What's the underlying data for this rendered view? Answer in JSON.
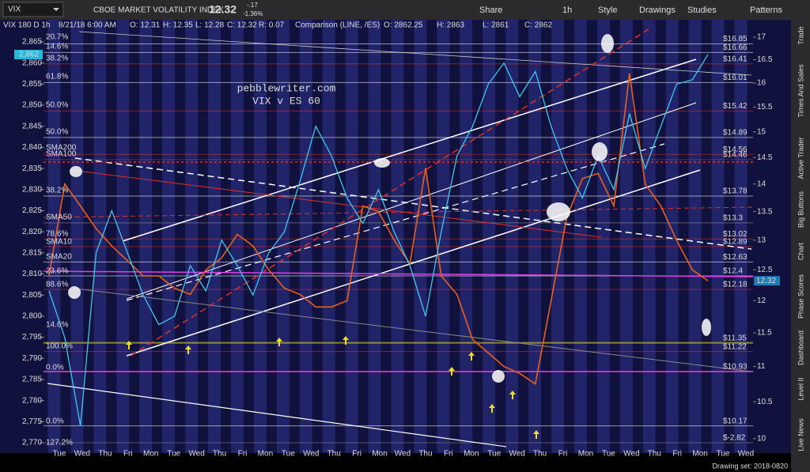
{
  "toolbar": {
    "symbol": "VIX",
    "name": "CBOE MARKET VOLATILITY INDEX",
    "price": "12.32",
    "change": "-.17",
    "change_pct": "-1.36%",
    "buttons": [
      "Share",
      "1h",
      "Style",
      "Drawings",
      "Studies",
      "Patterns"
    ]
  },
  "header": {
    "study": "VIX 180 D 1h",
    "datetime": "8/21/18 6:00 AM",
    "ohlc": [
      "O: 12.31",
      "H: 12.35",
      "L: 12.28",
      "C: 12.32",
      "R: 0.07"
    ],
    "comparison": "Comparison (LINE, /ES)",
    "comparison_ohlc": [
      "O: 2862.25",
      "H: 2863",
      "L: 2861",
      "C: 2862"
    ]
  },
  "watermark": [
    "pebblewriter.com",
    "VIX v ES 60"
  ],
  "left_axis": {
    "ticks": [
      {
        "value": 2865,
        "label": "2,865"
      },
      {
        "value": 2860,
        "label": "2,860"
      },
      {
        "value": 2855,
        "label": "2,855"
      },
      {
        "value": 2850,
        "label": "2,850"
      },
      {
        "value": 2845,
        "label": "2,845"
      },
      {
        "value": 2840,
        "label": "2,840"
      },
      {
        "value": 2835,
        "label": "2,835"
      },
      {
        "value": 2830,
        "label": "2,830"
      },
      {
        "value": 2825,
        "label": "2,825"
      },
      {
        "value": 2820,
        "label": "2,820"
      },
      {
        "value": 2815,
        "label": "2,815"
      },
      {
        "value": 2810,
        "label": "2,810"
      },
      {
        "value": 2805,
        "label": "2,805"
      },
      {
        "value": 2800,
        "label": "2,800"
      },
      {
        "value": 2795,
        "label": "2,795"
      },
      {
        "value": 2790,
        "label": "2,790"
      },
      {
        "value": 2785,
        "label": "2,785"
      },
      {
        "value": 2780,
        "label": "2,780"
      },
      {
        "value": 2775,
        "label": "2,775"
      },
      {
        "value": 2770,
        "label": "2,770"
      }
    ],
    "current": {
      "value": 2862,
      "label": "2,862"
    }
  },
  "right_axis": {
    "ticks": [
      17,
      16.5,
      16,
      15.5,
      15,
      14.5,
      14,
      13.5,
      13,
      12.5,
      12,
      11.5,
      11,
      10.5,
      10
    ],
    "current": 12.32
  },
  "levels": [
    {
      "value": 16.85,
      "label": "$16.85",
      "color": "#ffffff"
    },
    {
      "value": 16.66,
      "label": "$16.66",
      "color": "#ffffff"
    },
    {
      "value": 16.41,
      "label": "$16.41",
      "color": "#e0302a"
    },
    {
      "value": 16.01,
      "label": "$16.01",
      "color": "#ffffff"
    },
    {
      "value": 15.42,
      "label": "$15.42",
      "color": "#e0302a"
    },
    {
      "value": 14.89,
      "label": "$14.89",
      "color": "#ffffff"
    },
    {
      "value": 14.56,
      "label": "$14.56",
      "color": "#e0302a"
    },
    {
      "value": 14.46,
      "label": "$14.46",
      "color": "#e0302a"
    },
    {
      "value": 13.78,
      "label": "$13.78",
      "color": "#ffffff"
    },
    {
      "value": 13.3,
      "label": "$13.3",
      "color": "#999999"
    },
    {
      "value": 13.02,
      "label": "$13.02",
      "color": "#e0302a"
    },
    {
      "value": 12.89,
      "label": "$12.89",
      "color": "#e0302a"
    },
    {
      "value": 12.63,
      "label": "$12.63",
      "color": "#ffffff"
    },
    {
      "value": 12.4,
      "label": "$12.4",
      "color": "#ffffff"
    },
    {
      "value": 12.18,
      "label": "$12.18",
      "color": "#e0302a"
    },
    {
      "value": 11.35,
      "label": "$11.35",
      "color": "#f0e020"
    },
    {
      "value": 11.22,
      "label": "$11.22",
      "color": "#e0302a"
    },
    {
      "value": 10.93,
      "label": "$10.93",
      "color": "#e0302a"
    },
    {
      "value": 10.17,
      "label": "$10.17",
      "color": "#ffffff"
    },
    {
      "value": -2.82,
      "label": "$-2.82",
      "color": "#888888"
    }
  ],
  "fib_labels": [
    {
      "label": "20.7%",
      "color": "#ffffff"
    },
    {
      "label": "14.6%",
      "color": "#ffffff"
    },
    {
      "label": "38.2%",
      "color": "#e0302a"
    },
    {
      "label": "61.8%",
      "color": "#ffffff"
    },
    {
      "label": "50.0%",
      "color": "#e0302a"
    },
    {
      "label": "50.0%",
      "color": "#ffffff"
    },
    {
      "label": "SMA200",
      "color": "#e0302a"
    },
    {
      "label": "SMA100",
      "color": "#e0302a"
    },
    {
      "label": "38.2%",
      "color": "#ffffff"
    },
    {
      "label": "SMA50",
      "color": "#e0302a"
    },
    {
      "label": "78.6%",
      "color": "#e0302a"
    },
    {
      "label": "SMA10",
      "color": "#e0302a"
    },
    {
      "label": "SMA20",
      "color": "#ffffff"
    },
    {
      "label": "23.6%",
      "color": "#ffffff"
    },
    {
      "label": "88.6%",
      "color": "#e0302a"
    },
    {
      "label": "14.6%",
      "color": "#f0e020"
    },
    {
      "label": "100.0%",
      "color": "#e0302a"
    },
    {
      "label": "0.0%",
      "color": "#e040e0"
    },
    {
      "label": "0.0%",
      "color": "#ffffff"
    },
    {
      "label": "127.2%",
      "color": "#888888"
    }
  ],
  "x_labels": [
    "Tue",
    "Wed",
    "Thu",
    "Fri",
    "Mon",
    "Tue",
    "Wed",
    "Thu",
    "Fri",
    "Mon",
    "Tue",
    "Wed",
    "Thu",
    "Fri",
    "Mon",
    "Wed",
    "Thu",
    "Fri",
    "Mon",
    "Tue",
    "Wed",
    "Thu",
    "Fri",
    "Mon",
    "Tue",
    "Wed",
    "Thu",
    "Fri",
    "Mon",
    "Tue",
    "Wed"
  ],
  "es_values": [
    2806,
    2795,
    2774,
    2815,
    2825,
    2815,
    2805,
    2798,
    2800,
    2812,
    2806,
    2818,
    2812,
    2805,
    2815,
    2820,
    2832,
    2845,
    2838,
    2828,
    2822,
    2830,
    2820,
    2812,
    2800,
    2820,
    2838,
    2845,
    2855,
    2860,
    2852,
    2858,
    2845,
    2835,
    2828,
    2838,
    2830,
    2848,
    2835,
    2845,
    2855,
    2856,
    2862
  ],
  "vix_values": [
    12.4,
    14.0,
    13.6,
    13.2,
    12.9,
    12.65,
    12.4,
    12.4,
    12.2,
    12.1,
    12.5,
    12.7,
    13.1,
    12.9,
    12.5,
    12.2,
    12.1,
    11.9,
    11.9,
    12.0,
    13.6,
    13.5,
    13.0,
    12.6,
    14.3,
    12.4,
    12.1,
    11.4,
    11.2,
    11.0,
    10.9,
    10.75,
    12.0,
    13.4,
    14.1,
    14.2,
    13.6,
    16.2,
    14.0,
    13.6,
    13.0,
    12.5,
    12.32
  ],
  "side_tabs": [
    "Trade",
    "Times And Sales",
    "Active Trader",
    "Big Buttons",
    "Chart",
    "Phase Scores",
    "Dashboard",
    "Level II",
    "Live News"
  ],
  "footer": "Drawing set: 2018-0820"
}
